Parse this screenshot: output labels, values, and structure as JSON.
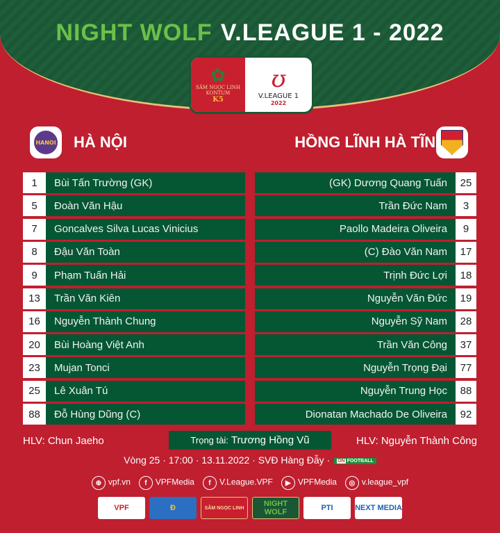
{
  "header": {
    "brand": "NIGHT WOLF",
    "title": "V.LEAGUE 1 - 2022"
  },
  "badge": {
    "sponsor": "SÂM NGỌC LINH",
    "sponsor_sub": "KONTUM",
    "sponsor_mark": "K5",
    "league": "V.LEAGUE 1",
    "year": "2022"
  },
  "home": {
    "name": "HÀ NỘI",
    "crest_text": "HANOI",
    "coach": "HLV: Chun Jaeho",
    "players": [
      {
        "number": "1",
        "name": "Bùi Tấn Trường (GK)"
      },
      {
        "number": "5",
        "name": "Đoàn Văn Hậu"
      },
      {
        "number": "7",
        "name": "Goncalves Silva Lucas Vinicius"
      },
      {
        "number": "8",
        "name": "Đậu Văn Toàn"
      },
      {
        "number": "9",
        "name": "Phạm Tuấn Hải"
      },
      {
        "number": "13",
        "name": "Trần Văn Kiên"
      },
      {
        "number": "16",
        "name": "Nguyễn Thành Chung"
      },
      {
        "number": "20",
        "name": "Bùi Hoàng Việt Anh"
      },
      {
        "number": "23",
        "name": "Mujan Tonci"
      },
      {
        "number": "25",
        "name": "Lê Xuân Tú"
      },
      {
        "number": "88",
        "name": "Đỗ Hùng Dũng (C)"
      }
    ]
  },
  "away": {
    "name": "HỒNG LĨNH HÀ TĨNH",
    "coach": "HLV: Nguyễn Thành Công",
    "players": [
      {
        "number": "25",
        "name": "(GK) Dương Quang Tuấn"
      },
      {
        "number": "3",
        "name": "Trần Đức Nam"
      },
      {
        "number": "9",
        "name": "Paollo Madeira Oliveira"
      },
      {
        "number": "17",
        "name": "(C) Đào Văn Nam"
      },
      {
        "number": "18",
        "name": "Trịnh Đức Lợi"
      },
      {
        "number": "19",
        "name": "Nguyễn Văn Đức"
      },
      {
        "number": "28",
        "name": "Nguyễn Sỹ Nam"
      },
      {
        "number": "37",
        "name": "Trần Văn Công"
      },
      {
        "number": "77",
        "name": "Nguyễn Trọng Đại"
      },
      {
        "number": "88",
        "name": "Nguyễn Trung Học"
      },
      {
        "number": "92",
        "name": "Dionatan Machado De Oliveira"
      }
    ]
  },
  "referee": {
    "label": "Trọng tài:",
    "name": "Trương Hồng Vũ"
  },
  "match_info": "Vòng 25 · 17:00 · 13.11.2022 · SVĐ Hàng Đẫy ·",
  "broadcaster": {
    "on": "ON",
    "name": "FOOTBALL"
  },
  "social": [
    {
      "icon": "globe-icon",
      "glyph": "⊕",
      "label": "vpf.vn"
    },
    {
      "icon": "facebook-icon",
      "glyph": "f",
      "label": "VPFMedia"
    },
    {
      "icon": "facebook-icon",
      "glyph": "f",
      "label": "V.League.VPF"
    },
    {
      "icon": "youtube-icon",
      "glyph": "▶",
      "label": "VPFMedia"
    },
    {
      "icon": "instagram-icon",
      "glyph": "◎",
      "label": "v.league_vpf"
    }
  ],
  "sponsors": [
    "VPF",
    "Đ",
    "SÂM NGỌC LINH",
    "NIGHT WOLF",
    "PTI",
    "NEXT MEDIA"
  ],
  "colors": {
    "red": "#bf1f2f",
    "green": "#055734",
    "gold": "#e9c27a",
    "nightwolf": "#6cc04a"
  }
}
